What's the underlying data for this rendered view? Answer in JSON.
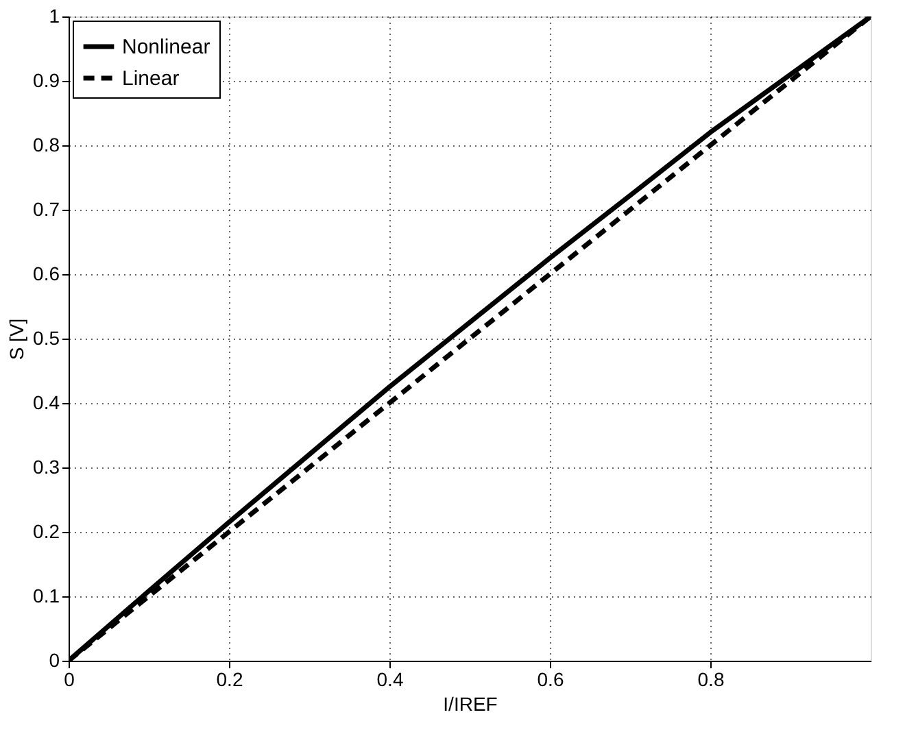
{
  "chart_data": {
    "type": "line",
    "xlabel": "I/IREF",
    "ylabel": "S [V]",
    "x": [
      0,
      0.1,
      0.2,
      0.3,
      0.4,
      0.5,
      0.6,
      0.7,
      0.8,
      0.9,
      1
    ],
    "series": [
      {
        "name": "Nonlinear",
        "color": "#000000",
        "line_style": "solid",
        "values": [
          0,
          0.108,
          0.215,
          0.32,
          0.425,
          0.525,
          0.625,
          0.722,
          0.82,
          0.91,
          1
        ]
      },
      {
        "name": "Linear",
        "color": "#000000",
        "line_style": "dashed",
        "values": [
          0,
          0.1,
          0.2,
          0.3,
          0.4,
          0.5,
          0.6,
          0.7,
          0.8,
          0.9,
          1
        ]
      }
    ],
    "xlim": [
      0,
      1
    ],
    "xticks": [
      0,
      0.2,
      0.4,
      0.6,
      0.8
    ],
    "ylim": [
      0,
      1
    ],
    "yticks": [
      0,
      0.1,
      0.2,
      0.3,
      0.4,
      0.5,
      0.6,
      0.7,
      0.8,
      0.9,
      1
    ],
    "grid": true,
    "legend": "top left",
    "marker": "none"
  }
}
